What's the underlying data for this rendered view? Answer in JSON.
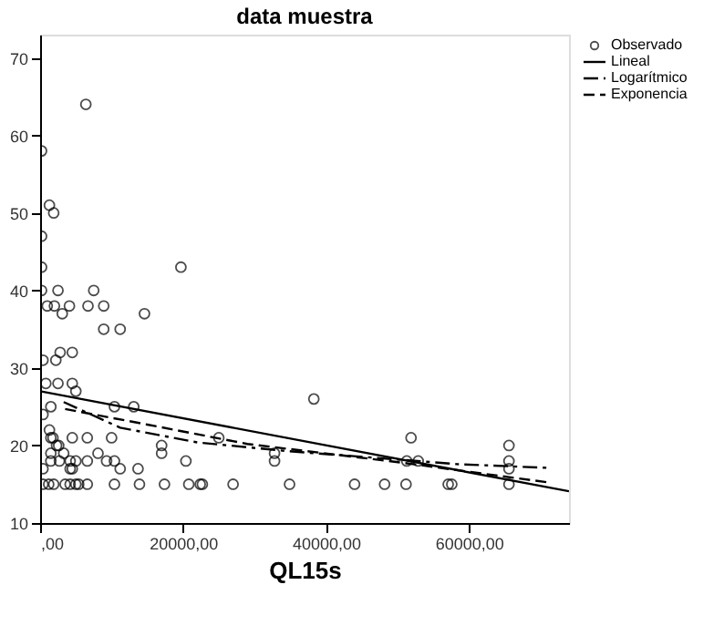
{
  "chart_data": {
    "type": "scatter",
    "title": "data muestra",
    "xlabel": "QL15s",
    "xlim": [
      0,
      74000
    ],
    "ylim": [
      10,
      73
    ],
    "xticks": [
      {
        "value": 0,
        "label": ",00"
      },
      {
        "value": 20000,
        "label": "20000,00"
      },
      {
        "value": 40000,
        "label": "40000,00"
      },
      {
        "value": 60000,
        "label": "60000,00"
      }
    ],
    "yticks": [
      10,
      20,
      30,
      40,
      50,
      60,
      70
    ],
    "grid": false,
    "legend": "right",
    "series": [
      {
        "name": "Observado",
        "marker": "circle",
        "color": "#000000",
        "x": [
          6400,
          200,
          1300,
          1900,
          200,
          200,
          19700,
          200,
          2500,
          7500,
          1000,
          2000,
          4100,
          8900,
          6700,
          3100,
          8900,
          11200,
          14600,
          38300,
          400,
          2200,
          2800,
          4500,
          800,
          2500,
          4500,
          5000,
          1500,
          10400,
          13100,
          400,
          1300,
          1500,
          1800,
          4500,
          6600,
          10000,
          17000,
          17000,
          25000,
          2300,
          2600,
          400,
          1500,
          3300,
          8100,
          1500,
          2700,
          4200,
          5000,
          6600,
          9300,
          10400,
          20400,
          32800,
          4200,
          4500,
          11200,
          13700,
          400,
          1200,
          1900,
          3500,
          4200,
          5000,
          5400,
          6600,
          10400,
          13900,
          17400,
          20800,
          22400,
          22700,
          27000,
          34900,
          32800,
          51900,
          51300,
          52900,
          44000,
          48200,
          51200,
          57100,
          57600,
          65600,
          65600,
          65600,
          65600
        ],
        "values": [
          64,
          58,
          51,
          50,
          47,
          43,
          43,
          40,
          40,
          40,
          38,
          38,
          38,
          38,
          38,
          37,
          35,
          35,
          37,
          26,
          31,
          31,
          32,
          32,
          28,
          28,
          28,
          27,
          25,
          25,
          25,
          24,
          22,
          21,
          21,
          21,
          21,
          21,
          20,
          19,
          21,
          20,
          20,
          17,
          19,
          19,
          19,
          18,
          18,
          18,
          18,
          18,
          18,
          18,
          18,
          18,
          17,
          17,
          17,
          17,
          15,
          15,
          15,
          15,
          15,
          15,
          15,
          15,
          15,
          15,
          15,
          15,
          15,
          15,
          15,
          15,
          19,
          21,
          18,
          18,
          15,
          15,
          15,
          15,
          15,
          15,
          20,
          18,
          17
        ]
      },
      {
        "name": "Lineal",
        "type": "line",
        "line_style": "solid",
        "color": "#000000",
        "x": [
          0,
          74000
        ],
        "values": [
          27,
          14.1
        ]
      },
      {
        "name": "Logarítmico",
        "type": "line",
        "line_style": "dotted",
        "color": "#000000",
        "x": [
          3300,
          11200,
          22000,
          34300,
          58300,
          71400
        ],
        "values": [
          25.6,
          22.3,
          20.4,
          19.3,
          17.6,
          17.1
        ]
      },
      {
        "name": "Exponencia",
        "type": "line",
        "line_style": "dashed",
        "color": "#000000",
        "x": [
          3500,
          15000,
          29000,
          50500,
          71400
        ],
        "values": [
          24.7,
          22.7,
          20.2,
          17.8,
          15.2
        ]
      }
    ]
  }
}
